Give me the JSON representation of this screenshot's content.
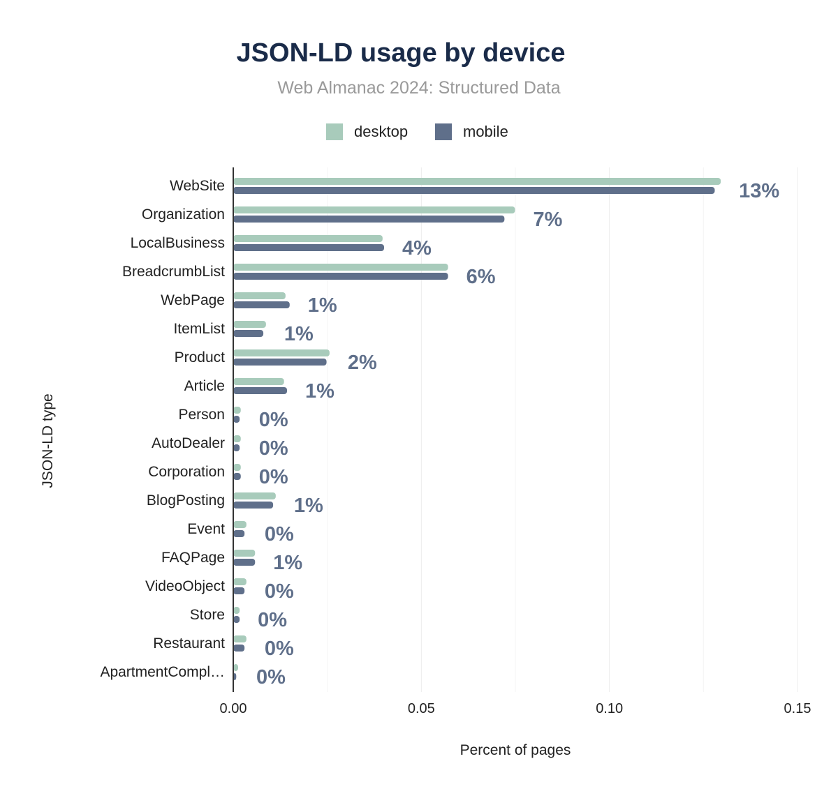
{
  "chart_data": {
    "type": "bar",
    "orientation": "horizontal",
    "title": "JSON-LD usage by device",
    "subtitle": "Web Almanac 2024: Structured Data",
    "xlabel": "Percent of pages",
    "ylabel": "JSON-LD type",
    "xlim": [
      0,
      0.15
    ],
    "xticks": [
      "0.00",
      "0.05",
      "0.10",
      "0.15"
    ],
    "grid": true,
    "legend_placement": "top",
    "categories": [
      "WebSite",
      "Organization",
      "LocalBusiness",
      "BreadcrumbList",
      "WebPage",
      "ItemList",
      "Product",
      "Article",
      "Person",
      "AutoDealer",
      "Corporation",
      "BlogPosting",
      "Event",
      "FAQPage",
      "VideoObject",
      "Store",
      "Restaurant",
      "ApartmentCompl…"
    ],
    "series": [
      {
        "name": "desktop",
        "color": "#a8cbbb",
        "values": [
          0.1296,
          0.0749,
          0.0397,
          0.0571,
          0.0139,
          0.0087,
          0.0256,
          0.0135,
          0.002,
          0.002,
          0.002,
          0.0113,
          0.0035,
          0.0058,
          0.0035,
          0.0017,
          0.0035,
          0.0013
        ]
      },
      {
        "name": "mobile",
        "color": "#5f6f8a",
        "values": [
          0.128,
          0.0721,
          0.0401,
          0.0571,
          0.015,
          0.008,
          0.0248,
          0.0143,
          0.0017,
          0.0017,
          0.002,
          0.0106,
          0.003,
          0.0058,
          0.003,
          0.0017,
          0.003,
          0.0008
        ]
      }
    ],
    "data_labels": [
      "13%",
      "7%",
      "4%",
      "6%",
      "1%",
      "1%",
      "2%",
      "1%",
      "0%",
      "0%",
      "0%",
      "1%",
      "0%",
      "1%",
      "0%",
      "0%",
      "0%",
      "0%"
    ]
  }
}
